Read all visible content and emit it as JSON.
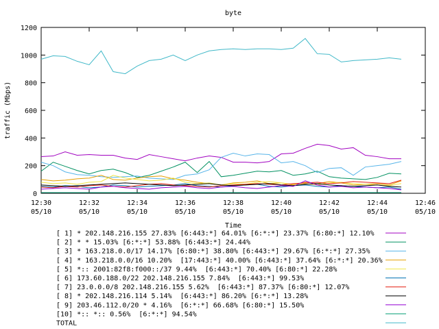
{
  "chart_data": {
    "type": "line",
    "title": "byte",
    "y_label": "traffic (Mbps)",
    "x_label": "Time",
    "x": [
      "12:30:00",
      "12:30:30",
      "12:31:00",
      "12:31:30",
      "12:32:00",
      "12:32:30",
      "12:33:00",
      "12:33:30",
      "12:34:00",
      "12:34:30",
      "12:35:00",
      "12:35:30",
      "12:36:00",
      "12:36:30",
      "12:37:00",
      "12:37:30",
      "12:38:00",
      "12:38:30",
      "12:39:00",
      "12:39:30",
      "12:40:00",
      "12:40:30",
      "12:41:00",
      "12:41:30",
      "12:42:00",
      "12:42:30",
      "12:43:00",
      "12:43:30",
      "12:44:00",
      "12:44:30",
      "12:45:00"
    ],
    "xlim": [
      "12:30:00",
      "12:46:00"
    ],
    "xticks": [
      {
        "value": "12:30:00",
        "label": "12:30",
        "date": "05/10"
      },
      {
        "value": "12:32:00",
        "label": "12:32",
        "date": "05/10"
      },
      {
        "value": "12:34:00",
        "label": "12:34",
        "date": "05/10"
      },
      {
        "value": "12:36:00",
        "label": "12:36",
        "date": "05/10"
      },
      {
        "value": "12:38:00",
        "label": "12:38",
        "date": "05/10"
      },
      {
        "value": "12:40:00",
        "label": "12:40",
        "date": "05/10"
      },
      {
        "value": "12:42:00",
        "label": "12:42",
        "date": "05/10"
      },
      {
        "value": "12:44:00",
        "label": "12:44",
        "date": "05/10"
      },
      {
        "value": "12:46:00",
        "label": "12:46",
        "date": "05/10"
      }
    ],
    "ylim": [
      0,
      1200
    ],
    "yticks": [
      0,
      200,
      400,
      600,
      800,
      1000,
      1200
    ],
    "series": [
      {
        "name": "[ 1] * 202.148.216.155 27.83% [6:443:*] 64.01% [6:*:*] 23.37% [6:80:*] 12.10%",
        "color": "#a000c0",
        "values": [
          265,
          270,
          300,
          275,
          280,
          275,
          275,
          255,
          245,
          280,
          265,
          250,
          235,
          255,
          270,
          260,
          225,
          225,
          220,
          230,
          285,
          290,
          325,
          355,
          345,
          320,
          330,
          275,
          265,
          250,
          250
        ]
      },
      {
        "name": "[ 2] * * 15.03% [6:*:*] 53.88% [6:443:*] 24.44%",
        "color": "#009060",
        "values": [
          160,
          225,
          195,
          165,
          140,
          165,
          175,
          150,
          115,
          130,
          160,
          190,
          225,
          150,
          230,
          120,
          130,
          145,
          160,
          155,
          165,
          130,
          140,
          160,
          120,
          110,
          105,
          100,
          115,
          145,
          140
        ]
      },
      {
        "name": "[ 3] * 163.218.0.0/17 14.17% [6:80:*] 38.80% [6:443:*] 29.67% [6:*:*] 27.35%",
        "color": "#56b4e9",
        "values": [
          225,
          200,
          155,
          135,
          130,
          120,
          115,
          120,
          125,
          110,
          105,
          100,
          130,
          140,
          170,
          260,
          290,
          270,
          285,
          280,
          220,
          230,
          200,
          150,
          180,
          185,
          130,
          190,
          200,
          210,
          230
        ]
      },
      {
        "name": "[ 4] * 163.218.0.0/16 10.20%  [17:443:*] 40.00% [6:443:*] 37.64% [6:*:*] 20.36%",
        "color": "#e69f00",
        "values": [
          100,
          90,
          95,
          105,
          110,
          130,
          100,
          95,
          110,
          120,
          125,
          105,
          95,
          80,
          70,
          60,
          75,
          80,
          90,
          70,
          75,
          60,
          80,
          70,
          85,
          75,
          60,
          65,
          70,
          60,
          90
        ]
      },
      {
        "name": "[ 5] *:: 2001:82f8:f000::/37 9.44%  [6:443:*] 70.40% [6:80:*] 22.28%",
        "color": "#f0e442",
        "values": [
          80,
          70,
          75,
          65,
          80,
          85,
          130,
          110,
          100,
          90,
          95,
          110,
          80,
          70,
          75,
          60,
          70,
          65,
          80,
          85,
          75,
          65,
          70,
          60,
          75,
          80,
          70,
          65,
          60,
          55,
          70
        ]
      },
      {
        "name": "[ 6] 173.60.188.0/22 202.148.216.155 7.84%  [6:443:*] 99.53%",
        "color": "#0072b2",
        "values": [
          50,
          45,
          55,
          50,
          40,
          45,
          60,
          55,
          45,
          50,
          55,
          60,
          70,
          55,
          50,
          45,
          55,
          60,
          65,
          50,
          45,
          55,
          60,
          50,
          45,
          55,
          50,
          45,
          40,
          45,
          30
        ]
      },
      {
        "name": "[ 7] 23.0.0.0/8 202.148.216.155 5.62%  [6:443:*] 87.37% [6:80:*] 12.07%",
        "color": "#e51e10",
        "values": [
          45,
          40,
          50,
          45,
          55,
          60,
          50,
          45,
          55,
          65,
          70,
          60,
          55,
          50,
          45,
          55,
          60,
          65,
          70,
          65,
          60,
          70,
          75,
          80,
          70,
          75,
          85,
          80,
          75,
          70,
          95
        ]
      },
      {
        "name": "[ 8] * 202.148.216.114 5.14%  [6:443:*] 86.20% [6:*:*] 13.28%",
        "color": "#000000",
        "values": [
          60,
          55,
          50,
          55,
          60,
          65,
          70,
          75,
          70,
          65,
          60,
          55,
          60,
          65,
          70,
          60,
          55,
          60,
          65,
          70,
          60,
          55,
          65,
          70,
          60,
          55,
          50,
          55,
          60,
          50,
          45
        ]
      },
      {
        "name": "[ 9] 203.46.112.0/20 * 4.16%  [6:*:*] 66.68% [6:80:*] 15.50%",
        "color": "#9400d3",
        "values": [
          30,
          35,
          40,
          35,
          30,
          45,
          50,
          40,
          35,
          30,
          40,
          45,
          50,
          40,
          35,
          45,
          50,
          40,
          35,
          45,
          55,
          50,
          90,
          60,
          45,
          50,
          40,
          45,
          40,
          35,
          25
        ]
      },
      {
        "name": "[10] *:: *:: 0.56%  [6:*:*] 94.54%",
        "color": "#009e73",
        "values": [
          5,
          5,
          5,
          5,
          5,
          5,
          5,
          5,
          5,
          5,
          5,
          5,
          5,
          5,
          5,
          5,
          5,
          5,
          5,
          5,
          5,
          5,
          5,
          5,
          5,
          5,
          5,
          5,
          5,
          5,
          5
        ]
      },
      {
        "name": "TOTAL",
        "color": "#40b8c8",
        "values": [
          970,
          995,
          990,
          955,
          930,
          1030,
          880,
          865,
          920,
          960,
          970,
          1000,
          960,
          1000,
          1030,
          1040,
          1045,
          1040,
          1045,
          1045,
          1040,
          1050,
          1120,
          1010,
          1005,
          950,
          960,
          965,
          970,
          980,
          970
        ]
      }
    ]
  }
}
